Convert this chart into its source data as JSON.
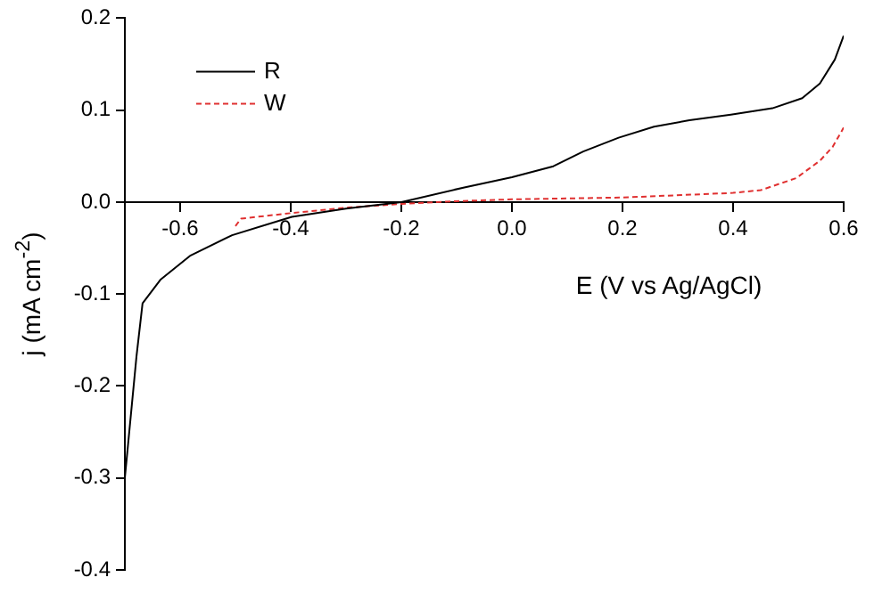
{
  "chart_data": {
    "type": "line",
    "xlabel": "E (V vs Ag/AgCl)",
    "ylabel": "j (mA cm$^{-2}$)",
    "xlim": [
      -0.7,
      0.6
    ],
    "ylim": [
      -0.4,
      0.2
    ],
    "xticks": [
      -0.6,
      -0.4,
      -0.2,
      {
        "value": 0,
        "label": "0.0"
      },
      0.2,
      0.4,
      0.6
    ],
    "yticks": [
      -0.4,
      -0.3,
      -0.2,
      -0.1,
      {
        "value": 0,
        "label": "0.0"
      },
      0.1,
      0.2
    ],
    "grid": false,
    "legend": "top left",
    "marker": "none",
    "series": [
      {
        "name": "R",
        "color": "#000000",
        "line_style": "solid",
        "x": [
          -0.7,
          -0.679,
          -0.668,
          -0.635,
          -0.581,
          -0.506,
          -0.398,
          -0.3,
          -0.2,
          -0.086,
          0,
          0.075,
          0.129,
          0.193,
          0.257,
          0.321,
          0.396,
          0.471,
          0.525,
          0.557,
          0.584,
          0.6
        ],
        "values": [
          -0.3,
          -0.168,
          -0.11,
          -0.084,
          -0.058,
          -0.036,
          -0.016,
          -0.007,
          0,
          0.016,
          0.027,
          0.039,
          0.055,
          0.07,
          0.082,
          0.089,
          0.095,
          0.102,
          0.113,
          0.129,
          0.155,
          0.181
        ]
      },
      {
        "name": "W",
        "color": "#e03030",
        "line_style": "dashed",
        "x": [
          -0.5,
          -0.49,
          -0.4,
          -0.3,
          -0.2,
          -0.1,
          0,
          0.2,
          0.4,
          0.45,
          0.514,
          0.557,
          0.58,
          0.6
        ],
        "values": [
          -0.026,
          -0.018,
          -0.012,
          -0.006,
          -0.002,
          0.001,
          0.003,
          0.005,
          0.01,
          0.013,
          0.026,
          0.045,
          0.06,
          0.081
        ]
      }
    ]
  }
}
